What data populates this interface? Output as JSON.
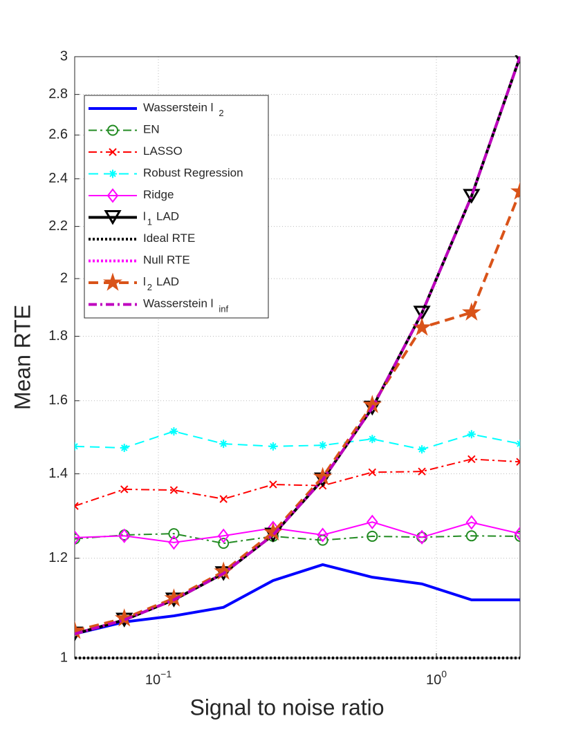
{
  "chart_data": {
    "type": "line",
    "xlabel": "Signal to noise ratio",
    "ylabel": "Mean RTE",
    "xlog": true,
    "ylog": true,
    "grid": true,
    "x": [
      0.05,
      0.0754,
      0.1137,
      0.1715,
      0.2586,
      0.39,
      0.588,
      0.887,
      1.338,
      2.0
    ],
    "xlim": [
      0.05,
      2.0
    ],
    "xticks": [
      {
        "value": 0.1,
        "label": "10",
        "exponent": "−1"
      },
      {
        "value": 1,
        "label": "10",
        "exponent": "0"
      }
    ],
    "ylim": [
      1,
      3
    ],
    "yticks": [
      1,
      1.2,
      1.4,
      1.6,
      1.8,
      2,
      2.2,
      2.4,
      2.6,
      2.8,
      3
    ],
    "series": [
      {
        "name": "Wasserstein l",
        "sub": "2",
        "color": "#0000ff",
        "width": 4,
        "dash": "none",
        "marker": "none",
        "values": [
          1.045,
          1.068,
          1.08,
          1.097,
          1.152,
          1.186,
          1.159,
          1.145,
          1.112,
          1.112
        ]
      },
      {
        "name": "EN",
        "color": "#228b22",
        "width": 2,
        "dash": "dashdot",
        "marker": "o",
        "values": [
          1.243,
          1.252,
          1.255,
          1.233,
          1.249,
          1.24,
          1.249,
          1.247,
          1.25,
          1.249
        ]
      },
      {
        "name": "LASSO",
        "color": "#ff0000",
        "width": 2,
        "dash": "dashdot",
        "marker": "x",
        "values": [
          1.32,
          1.361,
          1.359,
          1.337,
          1.373,
          1.37,
          1.404,
          1.406,
          1.438,
          1.431
        ]
      },
      {
        "name": "Robust Regression",
        "color": "#00ffff",
        "width": 2,
        "dash": "dash",
        "marker": "*",
        "values": [
          1.472,
          1.468,
          1.513,
          1.479,
          1.472,
          1.475,
          1.492,
          1.464,
          1.505,
          1.479
        ]
      },
      {
        "name": "Ridge",
        "color": "#ff00ff",
        "width": 2,
        "dash": "none",
        "marker": "d",
        "values": [
          1.246,
          1.25,
          1.235,
          1.25,
          1.268,
          1.252,
          1.282,
          1.247,
          1.281,
          1.255
        ]
      },
      {
        "name": "l",
        "sub": "1",
        "suffix": "LAD",
        "color": "#000000",
        "width": 4,
        "dash": "none",
        "marker": "v",
        "values": [
          1.045,
          1.072,
          1.112,
          1.167,
          1.252,
          1.385,
          1.579,
          1.878,
          2.325,
          3.0
        ]
      },
      {
        "name": "Ideal RTE",
        "color": "#000000",
        "width": 4,
        "dash": "dot",
        "marker": "none",
        "values": [
          1,
          1,
          1,
          1,
          1,
          1,
          1,
          1,
          1,
          1
        ]
      },
      {
        "name": "Null RTE",
        "color": "#ff00ff",
        "width": 4,
        "dash": "dot",
        "marker": "none",
        "values": [
          null,
          null,
          null,
          null,
          null,
          null,
          null,
          null,
          null,
          null
        ]
      },
      {
        "name": "l",
        "sub": "2",
        "suffix": "LAD",
        "color": "#d95319",
        "width": 4,
        "dash": "dash",
        "marker": "p",
        "values": [
          1.051,
          1.075,
          1.115,
          1.171,
          1.258,
          1.392,
          1.588,
          1.829,
          1.88,
          2.345
        ]
      },
      {
        "name": "Wasserstein l",
        "sub": "inf",
        "color": "#bf00bf",
        "width": 4,
        "dash": "dashdot",
        "marker": "none",
        "values": [
          1.045,
          1.072,
          1.112,
          1.167,
          1.252,
          1.385,
          1.579,
          1.878,
          2.325,
          3.0
        ]
      }
    ]
  }
}
